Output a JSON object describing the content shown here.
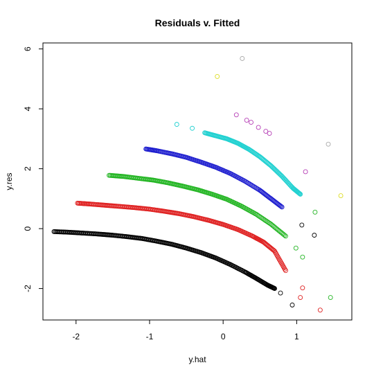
{
  "chart_data": {
    "type": "scatter",
    "title": "Residuals v. Fitted",
    "xlabel": "y.hat",
    "ylabel": "y.res",
    "xlim": [
      -2.45,
      1.75
    ],
    "ylim": [
      -3.05,
      6.2
    ],
    "xticks": [
      -2,
      -1,
      0,
      1
    ],
    "xtick_labels": [
      "-2",
      "-1",
      "0",
      "1"
    ],
    "yticks": [
      -2,
      0,
      2,
      4,
      6
    ],
    "ytick_labels": [
      "-2",
      "0",
      "2",
      "4",
      "6"
    ],
    "grid": false,
    "legend": false,
    "marker": "open-circle",
    "colors": [
      "#000000",
      "#df2020",
      "#22b522",
      "#1f1fcf",
      "#22d1d1",
      "#b53db5",
      "#dddd22",
      "#aaaaaa"
    ],
    "bands": [
      {
        "color": "#000000",
        "x": [
          -2.3,
          -2.1,
          -1.9,
          -1.7,
          -1.5,
          -1.3,
          -1.1,
          -0.9,
          -0.7,
          -0.5,
          -0.3,
          -0.1,
          0.1,
          0.3,
          0.45,
          0.6,
          0.7
        ],
        "y": [
          -0.1,
          -0.12,
          -0.15,
          -0.18,
          -0.22,
          -0.27,
          -0.33,
          -0.42,
          -0.52,
          -0.65,
          -0.8,
          -0.98,
          -1.2,
          -1.45,
          -1.66,
          -1.88,
          -2.0
        ],
        "dense": true
      },
      {
        "color": "#df2020",
        "x": [
          -1.98,
          -1.8,
          -1.6,
          -1.4,
          -1.2,
          -1.0,
          -0.8,
          -0.6,
          -0.4,
          -0.2,
          0.0,
          0.2,
          0.4,
          0.55,
          0.7,
          0.85
        ],
        "y": [
          0.85,
          0.82,
          0.78,
          0.74,
          0.7,
          0.65,
          0.58,
          0.5,
          0.4,
          0.28,
          0.14,
          -0.03,
          -0.25,
          -0.45,
          -0.75,
          -1.4
        ],
        "dense": true
      },
      {
        "color": "#22b522",
        "x": [
          -1.55,
          -1.35,
          -1.15,
          -0.95,
          -0.75,
          -0.55,
          -0.35,
          -0.15,
          0.05,
          0.25,
          0.45,
          0.65,
          0.85
        ],
        "y": [
          1.78,
          1.74,
          1.68,
          1.62,
          1.53,
          1.42,
          1.3,
          1.15,
          0.98,
          0.75,
          0.48,
          0.15,
          -0.25
        ],
        "dense": true
      },
      {
        "color": "#1f1fcf",
        "x": [
          -1.05,
          -0.9,
          -0.7,
          -0.5,
          -0.3,
          -0.1,
          0.1,
          0.3,
          0.5,
          0.65,
          0.8
        ],
        "y": [
          2.66,
          2.6,
          2.5,
          2.38,
          2.22,
          2.05,
          1.84,
          1.58,
          1.28,
          1.0,
          0.72
        ],
        "dense": true
      },
      {
        "color": "#22d1d1",
        "x": [
          -0.25,
          -0.1,
          0.05,
          0.2,
          0.35,
          0.5,
          0.65,
          0.8,
          0.95,
          1.05
        ],
        "y": [
          3.2,
          3.1,
          3.0,
          2.85,
          2.65,
          2.4,
          2.1,
          1.75,
          1.35,
          1.15
        ],
        "dense": true
      }
    ],
    "points": [
      {
        "x": -0.63,
        "y": 3.48,
        "color": "#22d1d1"
      },
      {
        "x": -0.42,
        "y": 3.35,
        "color": "#22d1d1"
      },
      {
        "x": 0.99,
        "y": -0.65,
        "color": "#22b522"
      },
      {
        "x": 1.08,
        "y": -0.95,
        "color": "#22b522"
      },
      {
        "x": 1.08,
        "y": -1.98,
        "color": "#df2020"
      },
      {
        "x": 1.05,
        "y": -2.3,
        "color": "#df2020"
      },
      {
        "x": 0.94,
        "y": -2.55,
        "color": "#000000"
      },
      {
        "x": 0.78,
        "y": -2.15,
        "color": "#000000"
      },
      {
        "x": 1.07,
        "y": 0.12,
        "color": "#000000"
      },
      {
        "x": 1.24,
        "y": -0.22,
        "color": "#000000"
      },
      {
        "x": 1.32,
        "y": -2.72,
        "color": "#df2020"
      },
      {
        "x": 1.46,
        "y": -2.3,
        "color": "#22b522"
      },
      {
        "x": 1.25,
        "y": 0.55,
        "color": "#22b522"
      },
      {
        "x": 1.12,
        "y": 1.9,
        "color": "#b53db5"
      },
      {
        "x": 0.18,
        "y": 3.8,
        "color": "#b53db5"
      },
      {
        "x": 0.32,
        "y": 3.62,
        "color": "#b53db5"
      },
      {
        "x": 0.38,
        "y": 3.55,
        "color": "#b53db5"
      },
      {
        "x": 0.48,
        "y": 3.38,
        "color": "#b53db5"
      },
      {
        "x": 0.58,
        "y": 3.25,
        "color": "#b53db5"
      },
      {
        "x": 0.63,
        "y": 3.18,
        "color": "#b53db5"
      },
      {
        "x": 0.26,
        "y": 5.68,
        "color": "#aaaaaa"
      },
      {
        "x": 1.43,
        "y": 2.82,
        "color": "#aaaaaa"
      },
      {
        "x": -0.08,
        "y": 5.08,
        "color": "#dddd22"
      },
      {
        "x": 1.6,
        "y": 1.1,
        "color": "#dddd22"
      }
    ]
  }
}
